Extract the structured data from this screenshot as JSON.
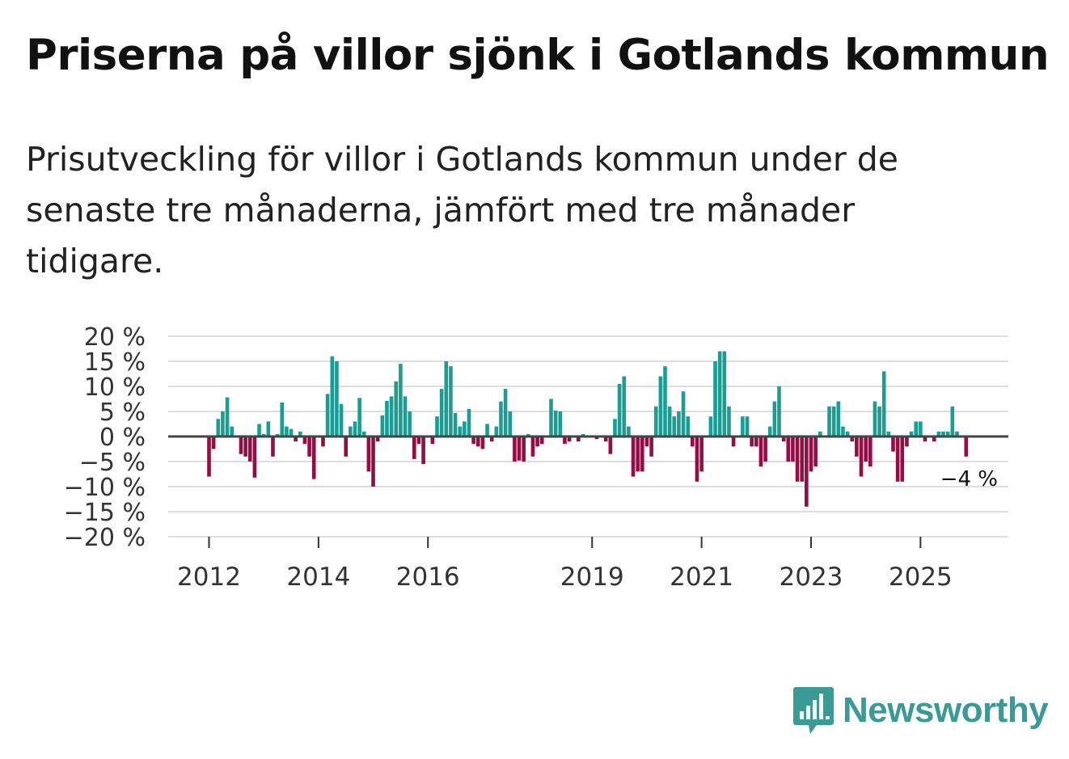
{
  "header": {
    "title": "Priserna på villor sjönk i Gotlands kommun",
    "subtitle": "Prisutveckling för villor i Gotlands kommun under de senaste tre månaderna, jämfört med tre månader tidigare."
  },
  "brand": {
    "name": "Newsworthy",
    "color": "#3a9a96"
  },
  "colors": {
    "positive": "#1a9e94",
    "negative": "#960c44",
    "zero_line": "#444444",
    "grid": "#dddddd"
  },
  "chart_data": {
    "type": "bar",
    "title": "Priserna på villor sjönk i Gotlands kommun",
    "xlabel": "",
    "ylabel": "",
    "ylim": [
      -20,
      20
    ],
    "yticks": [
      20,
      15,
      10,
      5,
      0,
      -5,
      -10,
      -15,
      -20
    ],
    "ytick_labels": [
      "20 %",
      "15 %",
      "10 %",
      "5 %",
      "0 %",
      "−5 %",
      "−10 %",
      "−15 %",
      "−20 %"
    ],
    "start": "2012-01",
    "xtick_labels": [
      {
        "label": "2012",
        "month_index": 0
      },
      {
        "label": "2014",
        "month_index": 24
      },
      {
        "label": "2016",
        "month_index": 48
      },
      {
        "label": "2019",
        "month_index": 84
      },
      {
        "label": "2021",
        "month_index": 108
      },
      {
        "label": "2023",
        "month_index": 132
      },
      {
        "label": "2025",
        "month_index": 156
      }
    ],
    "values": [
      -8,
      -2.5,
      3.5,
      5,
      7.8,
      2,
      0,
      -3.5,
      -4,
      -5,
      -8.2,
      2.5,
      0.5,
      3,
      -4,
      0.5,
      6.8,
      2,
      1.5,
      -1,
      1,
      -1.5,
      -4,
      -8.5,
      0,
      -2,
      8.5,
      16,
      15,
      6.5,
      -4,
      2,
      3,
      7.7,
      1,
      -7,
      -10,
      -1,
      4.2,
      7.1,
      8,
      11,
      14.5,
      8,
      5,
      -4.5,
      -1.5,
      -5.5,
      0,
      -1.5,
      4,
      9.5,
      15,
      14,
      4.7,
      2,
      3,
      5.5,
      -1.5,
      -2,
      -2.5,
      2.5,
      -1,
      2,
      7,
      9.5,
      5,
      -5,
      -4.8,
      -5,
      0.5,
      -4,
      -2,
      -1.5,
      0,
      7.5,
      5.2,
      5,
      -1.5,
      -1,
      0,
      -1,
      0.5,
      0,
      0,
      -0.5,
      0,
      -1,
      -3.5,
      3.5,
      10.5,
      12,
      2,
      -8,
      -7,
      -7,
      -2,
      -4,
      6,
      12,
      14,
      6,
      4,
      5,
      9,
      4,
      -2,
      -9,
      -7,
      0,
      4,
      15,
      17,
      17,
      6,
      -2,
      0,
      4,
      4,
      -2,
      -2,
      -6,
      -5,
      2,
      7,
      10,
      -1,
      -5,
      -5,
      -9,
      -9,
      -14,
      -7,
      -6,
      1,
      0,
      6,
      6,
      7,
      2,
      1,
      -1,
      -4,
      -8,
      -5,
      -6,
      7,
      6,
      13,
      1,
      -3,
      -9,
      -9,
      -2,
      1,
      3,
      3,
      -1,
      0,
      -1,
      1,
      1,
      1,
      6,
      1,
      0,
      -4
    ],
    "annotation": {
      "text": "−4 %",
      "value": -4
    }
  }
}
